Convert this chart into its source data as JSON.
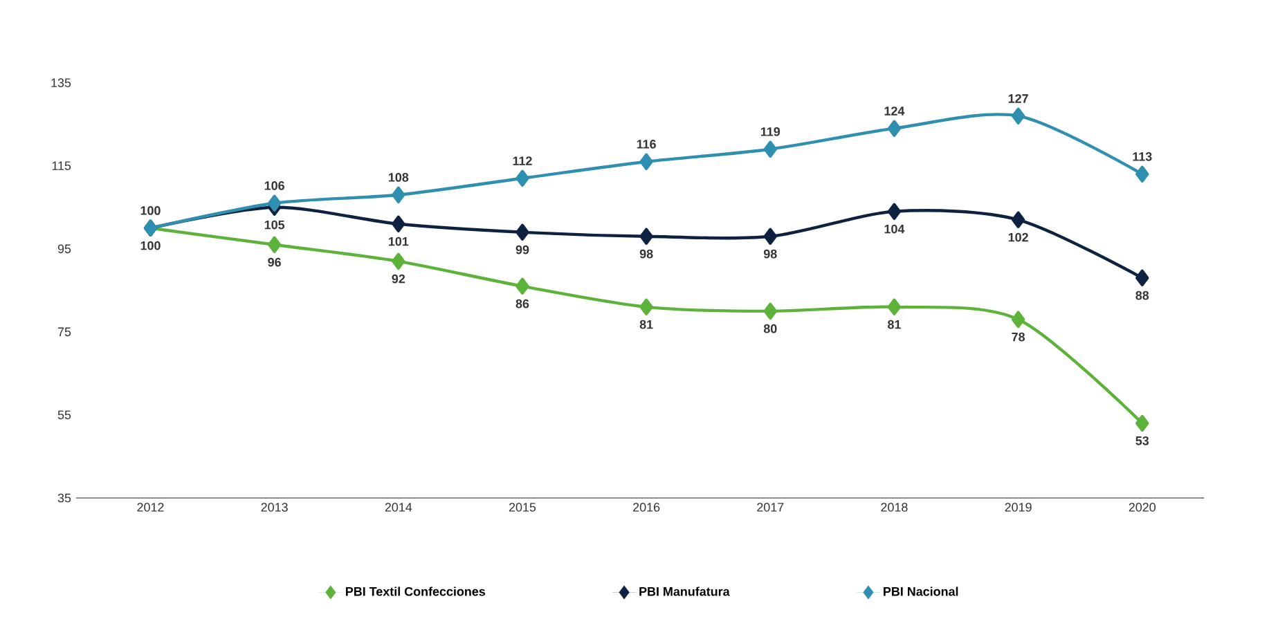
{
  "chart_data": {
    "type": "line",
    "categories": [
      "2012",
      "2013",
      "2014",
      "2015",
      "2016",
      "2017",
      "2018",
      "2019",
      "2020"
    ],
    "ylim": [
      35,
      135
    ],
    "yticks": [
      35,
      55,
      75,
      95,
      115,
      135
    ],
    "grid": false,
    "legend": "bottom",
    "marker": "diamond",
    "line_style": "solid",
    "series": [
      {
        "name": "PBI Textil Confecciones",
        "color": "#5db33a",
        "values": [
          100,
          96,
          92,
          86,
          81,
          80,
          81,
          78,
          53
        ],
        "value_labels": [
          "100",
          "96",
          "92",
          "86",
          "81",
          "80",
          "81",
          "78",
          "53"
        ]
      },
      {
        "name": "PBI Manufatura",
        "color": "#0d2240",
        "values": [
          100,
          105,
          101,
          99,
          98,
          98,
          104,
          102,
          88
        ],
        "value_labels": [
          null,
          "105",
          "101",
          "99",
          "98",
          "98",
          "104",
          "102",
          "88"
        ]
      },
      {
        "name": "PBI Nacional",
        "color": "#2e8fb0",
        "values": [
          100,
          106,
          108,
          112,
          116,
          119,
          124,
          127,
          113
        ],
        "value_labels": [
          "100",
          "106",
          "108",
          "112",
          "116",
          "119",
          "124",
          "127",
          "113"
        ]
      }
    ]
  }
}
